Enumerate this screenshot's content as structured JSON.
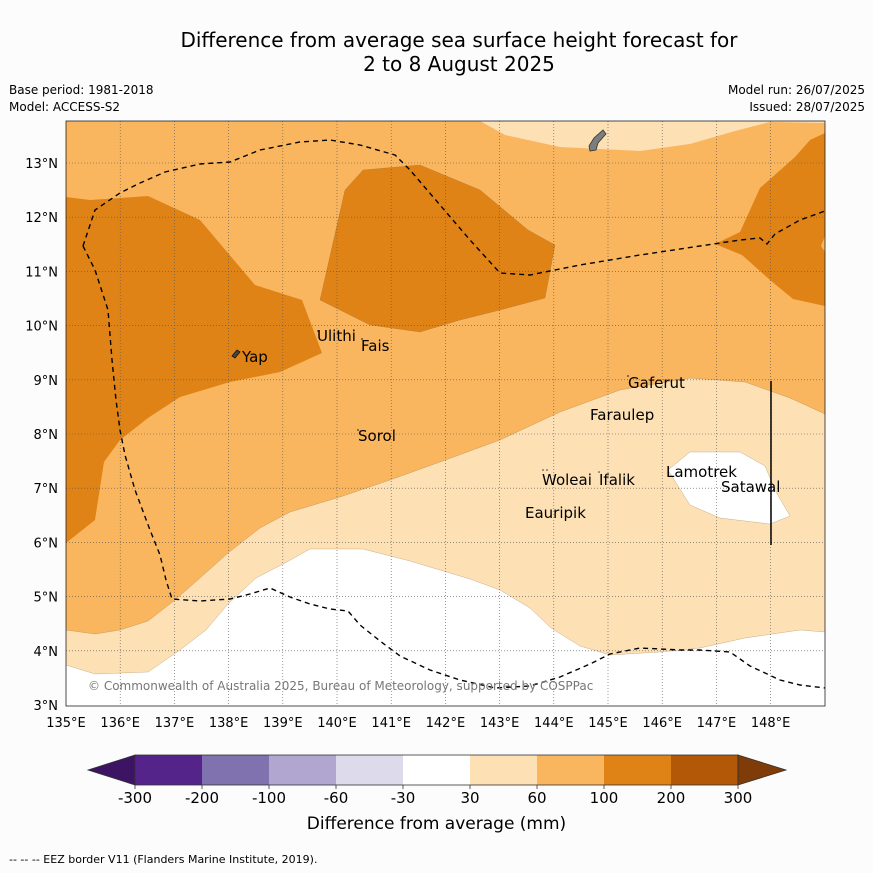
{
  "title": {
    "line1": "Difference from average sea surface height forecast for",
    "line2": "2 to 8 August 2025"
  },
  "meta": {
    "base_period": "Base period: 1981-2018",
    "model": "Model: ACCESS-S2",
    "model_run": "Model run: 26/07/2025",
    "issued": "Issued: 28/07/2025"
  },
  "map": {
    "lon_ticks": [
      "135°E",
      "136°E",
      "137°E",
      "138°E",
      "139°E",
      "140°E",
      "141°E",
      "142°E",
      "143°E",
      "144°E",
      "145°E",
      "146°E",
      "147°E",
      "148°E"
    ],
    "lat_ticks": [
      "3°N",
      "4°N",
      "5°N",
      "6°N",
      "7°N",
      "8°N",
      "9°N",
      "10°N",
      "11°N",
      "12°N",
      "13°N"
    ],
    "copyright": "© Commonwealth of Australia 2025, Bureau of Meteorology, supported by COSPPac",
    "places": [
      "Yap",
      "Ulithi",
      "Fais",
      "Sorol",
      "Gaferut",
      "Faraulep",
      "Woleai",
      "Ifalik",
      "Eauripik",
      "Lamotrek",
      "Satawal"
    ]
  },
  "colorbar": {
    "labels": [
      "-300",
      "-200",
      "-100",
      "-60",
      "-30",
      "30",
      "60",
      "100",
      "200",
      "300"
    ],
    "colors": [
      "#3d1463",
      "#54248b",
      "#7f72ae",
      "#b0a6cf",
      "#dcdaeb",
      "#ffffff",
      "#fde0b4",
      "#fab65f",
      "#e08316",
      "#b35806",
      "#7f3b08"
    ],
    "title": "Difference from average (mm)"
  },
  "footer": "--  --  -- EEZ border V11 (Flanders Marine Institute, 2019)."
}
